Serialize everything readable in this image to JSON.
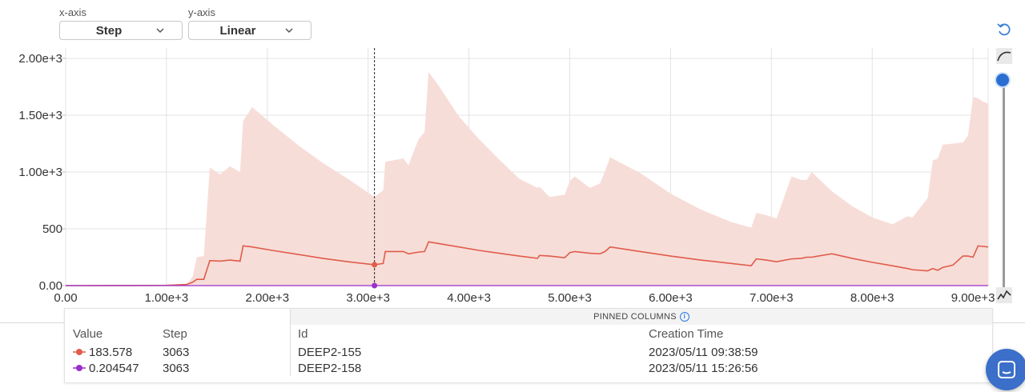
{
  "controls": {
    "xaxis_label": "x-axis",
    "yaxis_label": "y-axis",
    "xaxis_value": "Step",
    "yaxis_value": "Linear"
  },
  "colors": {
    "series_1": "#e05c4b",
    "series_1_band": "#f7ddd8",
    "series_2": "#9b2fc9",
    "accent": "#2a6ed2"
  },
  "chart_data": {
    "type": "line",
    "xlim": [
      0,
      9150
    ],
    "ylim": [
      0,
      2000
    ],
    "x_ticks": [
      "0.00",
      "1.00e+3",
      "2.00e+3",
      "3.00e+3",
      "4.00e+3",
      "5.00e+3",
      "6.00e+3",
      "7.00e+3",
      "8.00e+3",
      "9.00e+3"
    ],
    "x_tick_values": [
      0,
      1000,
      2000,
      3000,
      4000,
      5000,
      6000,
      7000,
      8000,
      9000
    ],
    "y_ticks": [
      "0.00",
      "500",
      "1.00e+3",
      "1.50e+3",
      "2.00e+3"
    ],
    "y_tick_values": [
      0,
      500,
      1000,
      1500,
      2000
    ],
    "grid": true,
    "hover_step": 3063,
    "series": [
      {
        "id": "DEEP2-155",
        "x": [
          0,
          1000,
          1200,
          1260,
          1300,
          1370,
          1430,
          1530,
          1630,
          1730,
          1760,
          1850,
          2050,
          2300,
          2550,
          2800,
          3063,
          3150,
          3170,
          3350,
          3400,
          3500,
          3560,
          3600,
          3700,
          3900,
          4100,
          4300,
          4500,
          4680,
          4700,
          4800,
          4950,
          5000,
          5050,
          5200,
          5300,
          5350,
          5400,
          5700,
          6000,
          6300,
          6600,
          6800,
          6850,
          6950,
          7050,
          7200,
          7300,
          7350,
          7400,
          7600,
          7800,
          8000,
          8200,
          8350,
          8400,
          8550,
          8600,
          8650,
          8700,
          8800,
          8900,
          8950,
          9000,
          9050,
          9100,
          9150
        ],
        "values": [
          0,
          2,
          10,
          30,
          55,
          55,
          220,
          215,
          225,
          215,
          350,
          340,
          310,
          275,
          240,
          210,
          183.578,
          195,
          300,
          300,
          280,
          295,
          300,
          385,
          370,
          340,
          310,
          285,
          260,
          240,
          265,
          260,
          245,
          290,
          300,
          285,
          280,
          300,
          340,
          300,
          260,
          225,
          195,
          175,
          235,
          225,
          210,
          235,
          240,
          250,
          250,
          280,
          240,
          205,
          175,
          150,
          140,
          130,
          150,
          135,
          160,
          180,
          260,
          260,
          250,
          350,
          345,
          340
        ],
        "band_upper": [
          0,
          2,
          10,
          80,
          250,
          260,
          1040,
          980,
          1050,
          1000,
          1450,
          1570,
          1420,
          1240,
          1080,
          940,
          780,
          840,
          1090,
          1120,
          1060,
          1290,
          1350,
          1880,
          1760,
          1490,
          1290,
          1110,
          940,
          860,
          870,
          780,
          800,
          920,
          960,
          860,
          900,
          1010,
          1130,
          990,
          810,
          670,
          560,
          510,
          640,
          620,
          590,
          960,
          930,
          930,
          1000,
          830,
          700,
          600,
          540,
          610,
          600,
          770,
          1100,
          1120,
          1240,
          1250,
          1260,
          1320,
          1660,
          1650,
          1620,
          1600
        ]
      },
      {
        "id": "DEEP2-158",
        "x": [
          0,
          9150
        ],
        "values": [
          0.204547,
          0.204547
        ]
      }
    ]
  },
  "legend": {
    "pinned_title": "PINNED COLUMNS",
    "col_value": "Value",
    "col_step": "Step",
    "col_id": "Id",
    "col_created": "Creation Time",
    "rows": [
      {
        "value": "183.578",
        "step": "3063",
        "id": "DEEP2-155",
        "created": "2023/05/11 09:38:59"
      },
      {
        "value": "0.204547",
        "step": "3063",
        "id": "DEEP2-158",
        "created": "2023/05/11 15:26:56"
      }
    ]
  },
  "icons": [
    "reset-zoom-icon",
    "smoothing-curve-icon",
    "smoothing-slider",
    "raw-line-icon",
    "chevron-down-icon",
    "info-icon",
    "chat-icon"
  ]
}
